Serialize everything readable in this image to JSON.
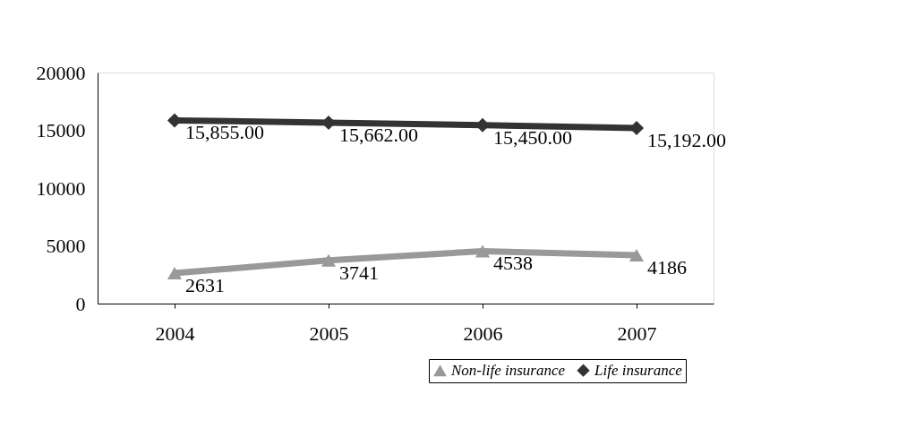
{
  "chart_data": {
    "type": "line",
    "categories": [
      "2004",
      "2005",
      "2006",
      "2007"
    ],
    "series": [
      {
        "name": "Non-life insurance",
        "color": "#999999",
        "marker": "triangle",
        "values": [
          2631,
          3741,
          4538,
          4186
        ],
        "value_labels": [
          "2631",
          "3741",
          "4538",
          "4186"
        ]
      },
      {
        "name": "Life insurance",
        "color": "#333333",
        "marker": "diamond",
        "values": [
          15855,
          15662,
          15450,
          15192
        ],
        "value_labels": [
          "15,855.00",
          "15,662.00",
          "15,450.00",
          "15,192.00"
        ]
      }
    ],
    "ylim": [
      0,
      20000
    ],
    "yticks": [
      0,
      5000,
      10000,
      15000,
      20000
    ],
    "grid": false,
    "legend": "bottom right"
  }
}
